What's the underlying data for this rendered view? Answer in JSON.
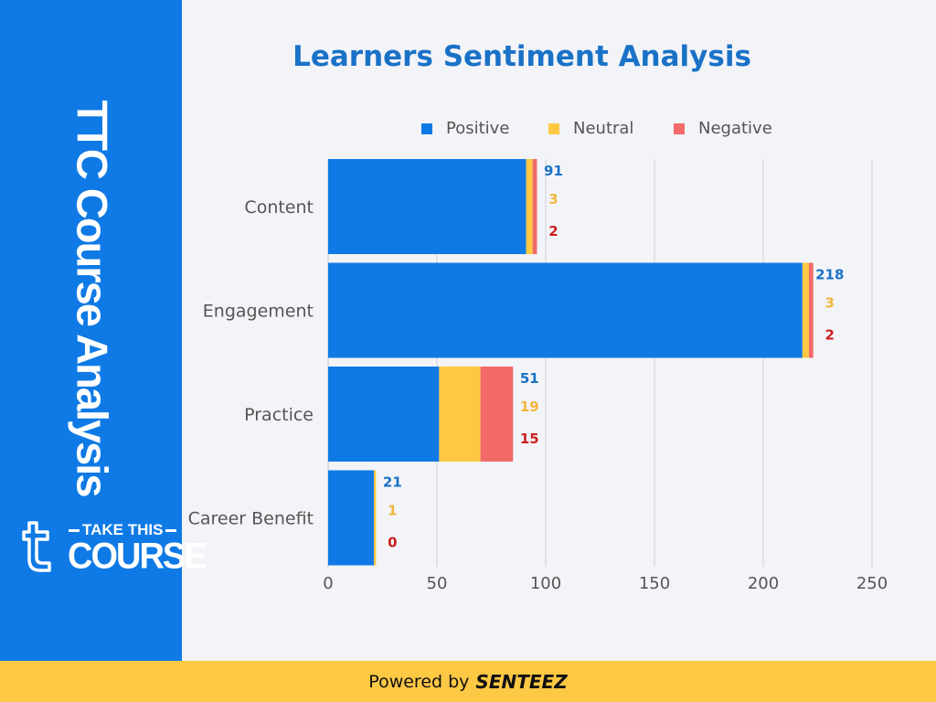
{
  "sidebar": {
    "title": "TTC Course Analysis"
  },
  "logo": {
    "tagline": "TAKE THIS",
    "name": "COURSE",
    "mark": "t-logo-icon"
  },
  "footer": {
    "prefix": "Powered by",
    "brand": "SENTEEZ"
  },
  "colors": {
    "positive": "#0f7ae5",
    "neutral": "#fdc844",
    "negative": "#f26a6a",
    "negative_label": "#cc1f1f",
    "neutral_label": "#f2b63c",
    "positive_label": "#1a72c7"
  },
  "chart_data": {
    "type": "bar",
    "orientation": "horizontal",
    "stacked": true,
    "title": "Learners Sentiment Analysis",
    "categories": [
      "Content",
      "Engagement",
      "Practice",
      "Career Benefit"
    ],
    "series": [
      {
        "name": "Positive",
        "values": [
          91,
          218,
          51,
          21
        ]
      },
      {
        "name": "Neutral",
        "values": [
          3,
          3,
          19,
          1
        ]
      },
      {
        "name": "Negative",
        "values": [
          2,
          2,
          15,
          0
        ]
      }
    ],
    "xlim": [
      0,
      250
    ],
    "xticks": [
      0,
      50,
      100,
      150,
      200,
      250
    ],
    "grid": true,
    "legend": "top"
  }
}
